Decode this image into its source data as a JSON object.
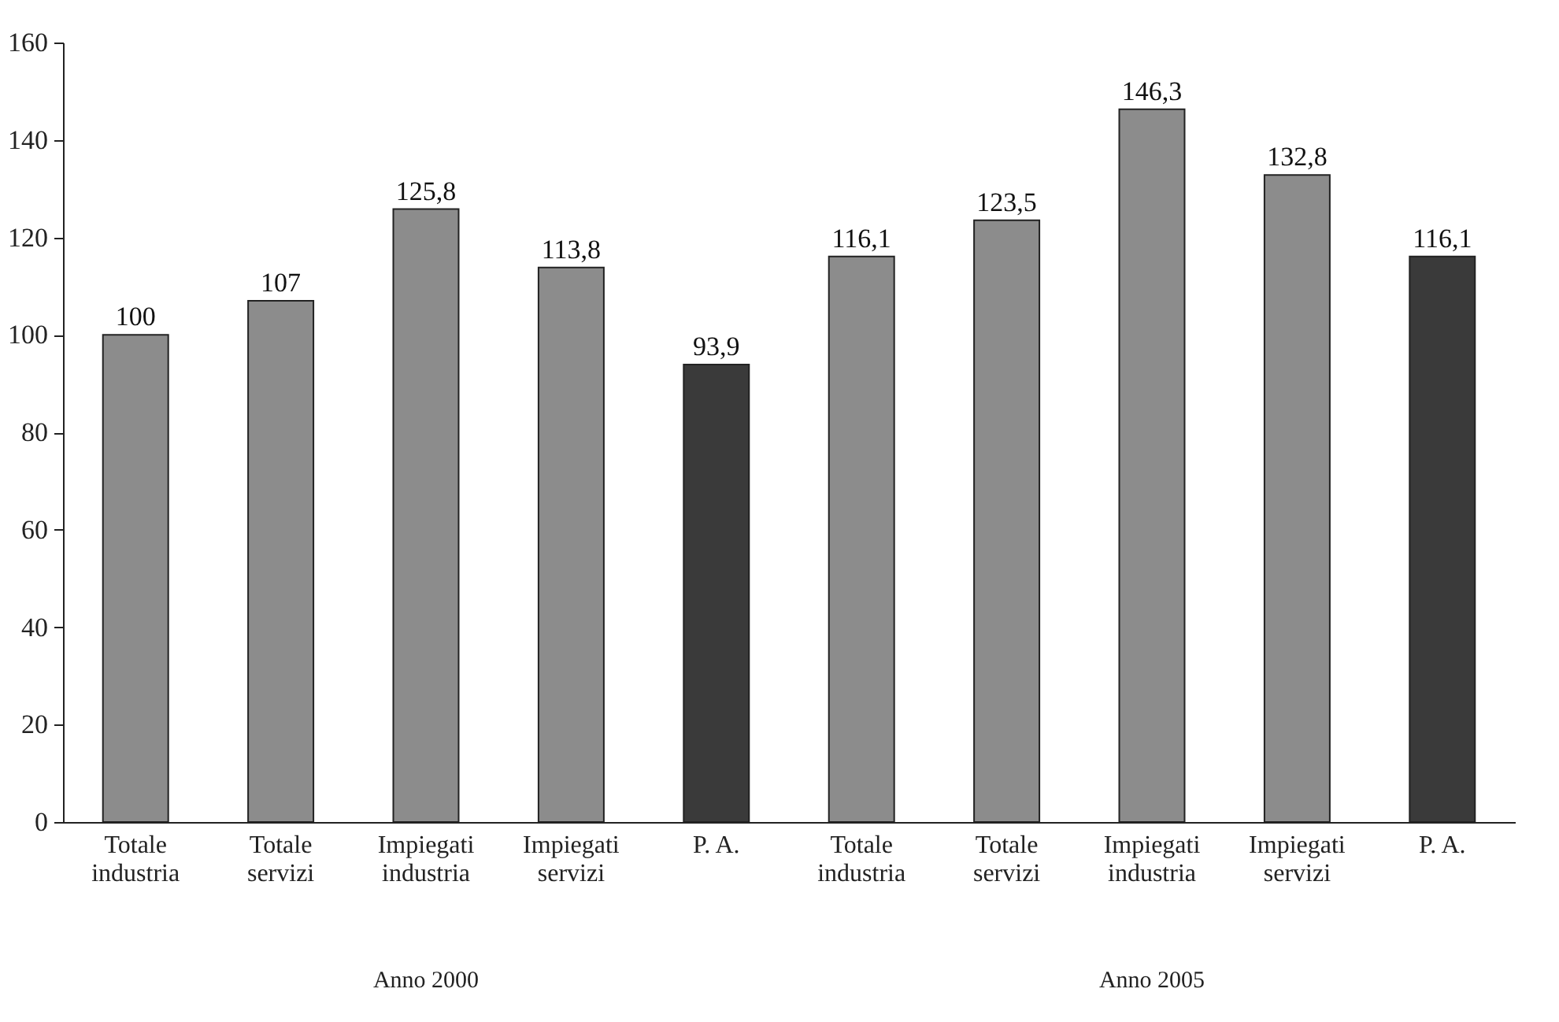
{
  "chart_data": {
    "type": "bar",
    "categories": [
      "Totale industria",
      "Totale servizi",
      "Impiegati industria",
      "Impiegati servizi",
      "P. A.",
      "Totale industria",
      "Totale servizi",
      "Impiegati industria",
      "Impiegati servizi",
      "P. A."
    ],
    "values": [
      100,
      107,
      125.8,
      113.8,
      93.9,
      116.1,
      123.5,
      146.3,
      132.8,
      116.1
    ],
    "colors": [
      "#8c8c8c",
      "#8c8c8c",
      "#8c8c8c",
      "#8c8c8c",
      "#3a3a3a",
      "#8c8c8c",
      "#8c8c8c",
      "#8c8c8c",
      "#8c8c8c",
      "#3a3a3a"
    ],
    "value_labels": [
      "100",
      "107",
      "125,8",
      "113,8",
      "93,9",
      "116,1",
      "123,5",
      "146,3",
      "132,8",
      "116,1"
    ],
    "ylim": [
      0,
      160
    ],
    "yticks": [
      0,
      20,
      40,
      60,
      80,
      100,
      120,
      140,
      160
    ],
    "annotations": [
      "Anno 2000",
      "Anno 2005"
    ]
  }
}
